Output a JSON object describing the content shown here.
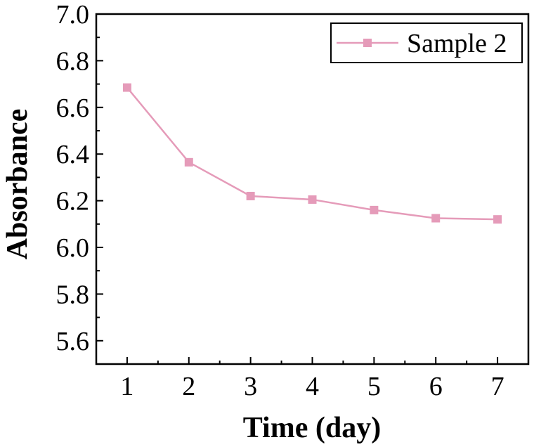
{
  "chart_data": {
    "type": "line",
    "title": "",
    "xlabel": "Time (day)",
    "ylabel": "Absorbance",
    "x": [
      1,
      2,
      3,
      4,
      5,
      6,
      7
    ],
    "xlim": [
      0.5,
      7.5
    ],
    "ylim": [
      5.5,
      7.0
    ],
    "xticks": [
      1,
      2,
      3,
      4,
      5,
      6,
      7
    ],
    "yticks": [
      "5.6",
      "5.8",
      "6.0",
      "6.2",
      "6.4",
      "6.6",
      "6.8",
      "7.0"
    ],
    "grid": false,
    "legend_position": "top-right",
    "series": [
      {
        "name": "Sample 2",
        "color": "#E59BB9",
        "marker": "square",
        "values": [
          6.685,
          6.365,
          6.22,
          6.205,
          6.16,
          6.125,
          6.12
        ]
      }
    ]
  }
}
